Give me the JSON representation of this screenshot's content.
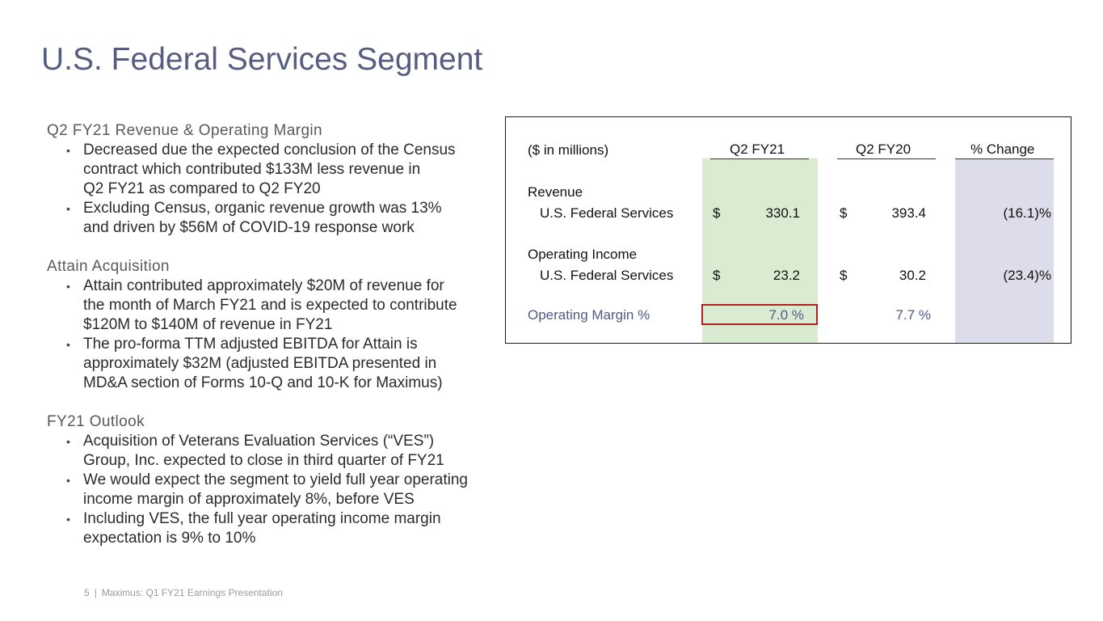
{
  "page": {
    "title": "U.S. Federal Services Segment"
  },
  "sections": [
    {
      "heading": "Q2 FY21 Revenue & Operating Margin",
      "bullets": [
        [
          "Decreased due the expected conclusion of the Census",
          "contract which contributed $133M less revenue in",
          "Q2 FY21 as compared to Q2 FY20"
        ],
        [
          "Excluding Census, organic revenue growth was 13%",
          "and driven by $56M of COVID-19 response work"
        ]
      ]
    },
    {
      "heading": "Attain Acquisition",
      "bullets": [
        [
          "Attain contributed approximately $20M of revenue for",
          "the month of March FY21 and is expected to contribute",
          "$120M to $140M of revenue in FY21"
        ],
        [
          "The pro-forma TTM adjusted EBITDA for Attain is",
          "approximately $32M (adjusted EBITDA presented in",
          "MD&A section of Forms 10-Q and 10-K for Maximus)"
        ]
      ]
    },
    {
      "heading": "FY21 Outlook",
      "bullets": [
        [
          "Acquisition of Veterans Evaluation Services (“VES”)",
          "Group, Inc. expected to close in third quarter of FY21"
        ],
        [
          "We would expect the segment to yield full year operating",
          "income margin of approximately 8%, before VES"
        ],
        [
          "Including VES, the full year operating income margin",
          "expectation is 9% to 10%"
        ]
      ]
    }
  ],
  "bullet_glyph": "•",
  "table": {
    "units_label": "($ in millions)",
    "col_q2fy21": "Q2 FY21",
    "col_q2fy20": "Q2 FY20",
    "col_change": "% Change",
    "revenue": {
      "heading": "Revenue",
      "row_label": "U.S. Federal Services",
      "currency_1": "$",
      "q2fy21": "330.1",
      "currency_2": "$",
      "q2fy20": "393.4",
      "change": "(16.1)%"
    },
    "operating_income": {
      "heading": "Operating Income",
      "row_label": "U.S. Federal Services",
      "currency_1": "$",
      "q2fy21": "23.2",
      "currency_2": "$",
      "q2fy20": "30.2",
      "change": "(23.4)%"
    },
    "operating_margin": {
      "label": "Operating Margin %",
      "q2fy21": "7.0 %",
      "q2fy20": "7.7 %"
    }
  },
  "footer": {
    "page_number": "5",
    "separator": "|",
    "text": "Maximus: Q1 FY21 Earnings Presentation"
  },
  "colors": {
    "title": "#575c82",
    "green_shade": "#d9ebd0",
    "blue_shade": "#dcdcea",
    "highlight": "#b02020",
    "margin_text": "#4f5a86"
  }
}
